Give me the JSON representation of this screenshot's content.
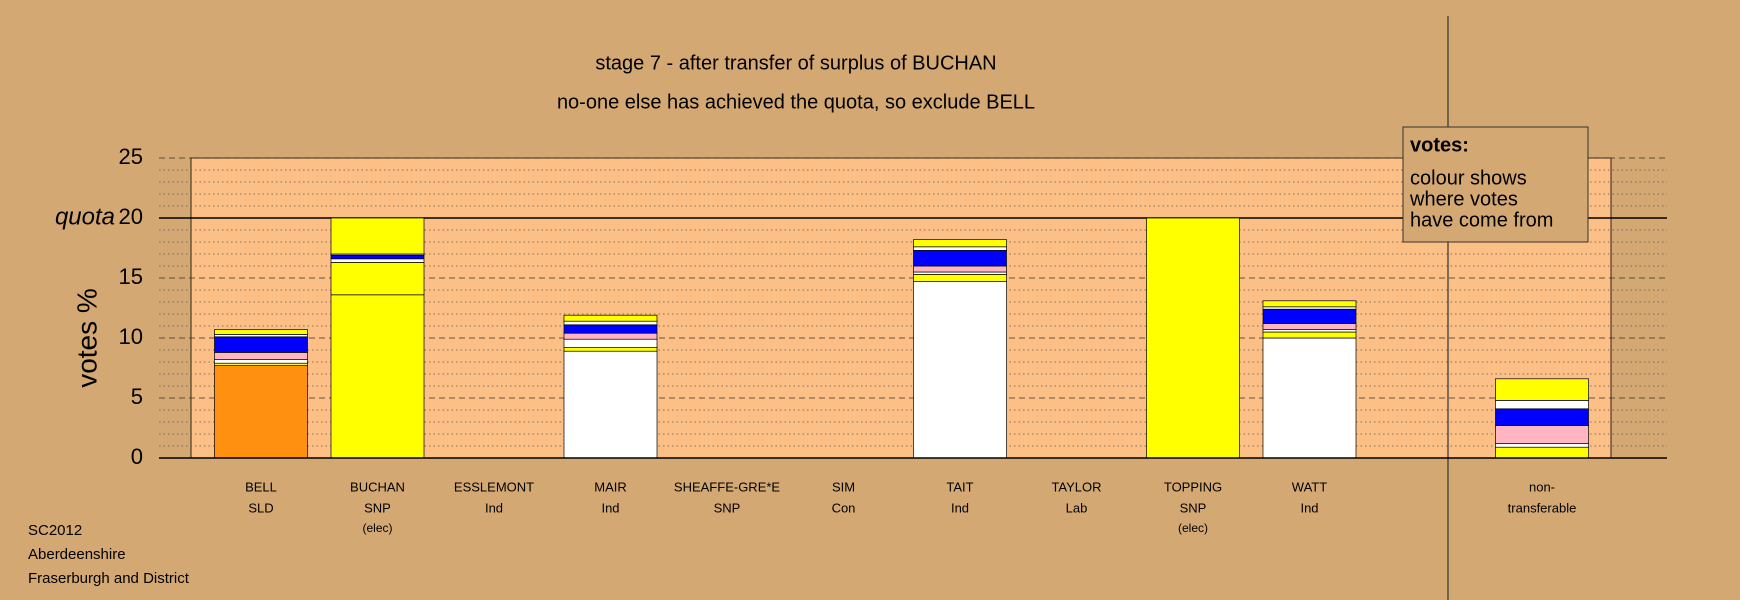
{
  "chart_data": {
    "type": "stacked_bar",
    "title": "stage 7 - after transfer of surplus of BUCHAN",
    "subtitle": "no-one else has achieved the quota, so exclude BELL",
    "y_label": "votes %",
    "ylim": [
      0,
      25
    ],
    "yticks": [
      0,
      5,
      10,
      15,
      20,
      25
    ],
    "quota": 20,
    "quota_label": "quota",
    "legend_title": "votes:",
    "legend_lines": [
      "colour shows",
      "where votes",
      "have come from"
    ],
    "footer": [
      "SC2012",
      "Aberdeenshire",
      "Fraserburgh and District"
    ],
    "categories": [
      "BELL",
      "BUCHAN",
      "ESSLEMONT",
      "MAIR",
      "SHEAFFE-GRE*E",
      "SIM",
      "TAIT",
      "TAYLOR",
      "TOPPING",
      "WATT",
      "non-"
    ],
    "parties": [
      "SLD",
      "SNP",
      "Ind",
      "Ind",
      "SNP",
      "Con",
      "Ind",
      "Lab",
      "SNP",
      "Ind",
      "transferable"
    ],
    "notes": [
      null,
      "(elec)",
      null,
      null,
      null,
      null,
      null,
      null,
      "(elec)",
      null,
      null
    ],
    "stacks": [
      [
        {
          "value": 7.7,
          "color": "#ff9010"
        },
        {
          "value": 0.2,
          "color": "#ffff00"
        },
        {
          "value": 0.3,
          "color": "#ffffff"
        },
        {
          "value": 0.6,
          "color": "#ffb6c1"
        },
        {
          "value": 1.3,
          "color": "#0000ff"
        },
        {
          "value": 0.2,
          "color": "#ffffff"
        },
        {
          "value": 0.4,
          "color": "#ffff00"
        }
      ],
      [
        {
          "value": 13.6,
          "color": "#ffff00"
        },
        {
          "value": 2.7,
          "color": "#ffff00"
        },
        {
          "value": 0.3,
          "color": "#ffffff"
        },
        {
          "value": 0.3,
          "color": "#0000ff"
        },
        {
          "value": 0.1,
          "color": "#ffffff"
        },
        {
          "value": 3.0,
          "color": "#ffff00"
        }
      ],
      [],
      [
        {
          "value": 8.9,
          "color": "#ffffff"
        },
        {
          "value": 0.3,
          "color": "#ffff00"
        },
        {
          "value": 0.7,
          "color": "#ffffff"
        },
        {
          "value": 0.5,
          "color": "#ffb6c1"
        },
        {
          "value": 0.7,
          "color": "#0000ff"
        },
        {
          "value": 0.3,
          "color": "#ffffff"
        },
        {
          "value": 0.5,
          "color": "#ffff00"
        }
      ],
      [],
      [],
      [
        {
          "value": 14.7,
          "color": "#ffffff"
        },
        {
          "value": 0.6,
          "color": "#ffff00"
        },
        {
          "value": 0.2,
          "color": "#ffffff"
        },
        {
          "value": 0.5,
          "color": "#ffb6c1"
        },
        {
          "value": 1.3,
          "color": "#0000ff"
        },
        {
          "value": 0.3,
          "color": "#ffffff"
        },
        {
          "value": 0.6,
          "color": "#ffff00"
        }
      ],
      [],
      [
        {
          "value": 20,
          "color": "#ffff00"
        }
      ],
      [
        {
          "value": 10.0,
          "color": "#ffffff"
        },
        {
          "value": 0.5,
          "color": "#ffff00"
        },
        {
          "value": 0.2,
          "color": "#ffffff"
        },
        {
          "value": 0.5,
          "color": "#ffb6c1"
        },
        {
          "value": 1.2,
          "color": "#0000ff"
        },
        {
          "value": 0.2,
          "color": "#ffffff"
        },
        {
          "value": 0.5,
          "color": "#ffff00"
        }
      ],
      [
        {
          "value": 0.9,
          "color": "#ffff00"
        },
        {
          "value": 0.3,
          "color": "#ffffff"
        },
        {
          "value": 1.5,
          "color": "#ffb6c1"
        },
        {
          "value": 1.4,
          "color": "#0000ff"
        },
        {
          "value": 0.7,
          "color": "#ffffff"
        },
        {
          "value": 1.8,
          "color": "#ffff00"
        }
      ]
    ]
  }
}
